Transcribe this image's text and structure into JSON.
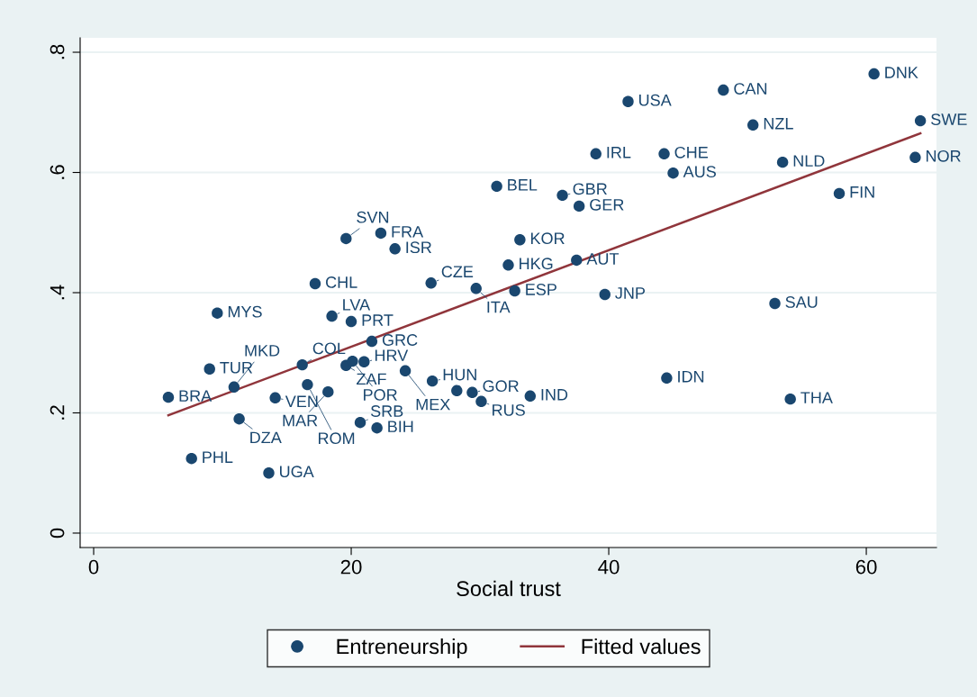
{
  "chart_data": {
    "type": "scatter",
    "xlabel": "Social trust",
    "x": [
      60.6,
      64.2,
      63.8,
      57.9,
      48.9,
      51.2,
      53.5,
      45.0,
      44.3,
      41.5,
      39.0,
      36.4,
      37.7,
      31.3,
      33.1,
      32.2,
      37.5,
      32.7,
      29.7,
      39.7,
      52.9,
      44.5,
      54.1,
      33.9,
      30.1,
      28.2,
      29.4,
      26.3,
      19.6,
      22.3,
      23.4,
      17.2,
      26.2,
      9.6,
      18.5,
      20.0,
      21.6,
      16.2,
      19.6,
      20.1,
      21.0,
      24.2,
      9.0,
      10.9,
      5.8,
      14.1,
      16.6,
      18.2,
      11.3,
      20.7,
      22.0,
      7.6,
      13.6
    ],
    "series": [
      {
        "name": "Entreneurship",
        "color": "#1a476f",
        "marker": "circle",
        "values": [
          0.764,
          0.686,
          0.625,
          0.565,
          0.737,
          0.679,
          0.617,
          0.599,
          0.631,
          0.718,
          0.631,
          0.562,
          0.544,
          0.577,
          0.488,
          0.446,
          0.454,
          0.403,
          0.407,
          0.397,
          0.382,
          0.258,
          0.223,
          0.228,
          0.219,
          0.237,
          0.234,
          0.253,
          0.49,
          0.499,
          0.473,
          0.415,
          0.416,
          0.366,
          0.361,
          0.352,
          0.319,
          0.28,
          0.279,
          0.286,
          0.285,
          0.27,
          0.273,
          0.243,
          0.226,
          0.225,
          0.247,
          0.235,
          0.19,
          0.184,
          0.175,
          0.124,
          0.1
        ]
      },
      {
        "name": "Fitted values",
        "type": "line",
        "color": "#90353b",
        "x": [
          5.8,
          64.2
        ],
        "values": [
          0.196,
          0.665
        ]
      }
    ],
    "annotations": [
      {
        "text": "DNK",
        "x": 60.6,
        "y": 0.764
      },
      {
        "text": "SWE",
        "x": 64.2,
        "y": 0.686
      },
      {
        "text": "NOR",
        "x": 63.8,
        "y": 0.625
      },
      {
        "text": "FIN",
        "x": 57.9,
        "y": 0.565
      },
      {
        "text": "CAN",
        "x": 48.9,
        "y": 0.737
      },
      {
        "text": "NZL",
        "x": 51.2,
        "y": 0.679
      },
      {
        "text": "NLD",
        "x": 53.5,
        "y": 0.617
      },
      {
        "text": "AUS",
        "x": 45.0,
        "y": 0.599
      },
      {
        "text": "CHE",
        "x": 44.3,
        "y": 0.631
      },
      {
        "text": "USA",
        "x": 41.5,
        "y": 0.718
      },
      {
        "text": "IRL",
        "x": 39.0,
        "y": 0.631
      },
      {
        "text": "GBR",
        "x": 36.4,
        "y": 0.562
      },
      {
        "text": "GER",
        "x": 37.7,
        "y": 0.544
      },
      {
        "text": "BEL",
        "x": 31.3,
        "y": 0.577
      },
      {
        "text": "KOR",
        "x": 33.1,
        "y": 0.488
      },
      {
        "text": "HKG",
        "x": 32.2,
        "y": 0.446
      },
      {
        "text": "AUT",
        "x": 37.5,
        "y": 0.454
      },
      {
        "text": "ESP",
        "x": 32.7,
        "y": 0.403
      },
      {
        "text": "ITA",
        "x": 29.7,
        "y": 0.407
      },
      {
        "text": "JNP",
        "x": 39.7,
        "y": 0.397
      },
      {
        "text": "SAU",
        "x": 52.9,
        "y": 0.382
      },
      {
        "text": "IDN",
        "x": 44.5,
        "y": 0.258
      },
      {
        "text": "THA",
        "x": 54.1,
        "y": 0.223
      },
      {
        "text": "IND",
        "x": 33.9,
        "y": 0.228
      },
      {
        "text": "RUS",
        "x": 30.1,
        "y": 0.219
      },
      {
        "text": "GOR",
        "x": 29.4,
        "y": 0.234
      },
      {
        "text": "HUN",
        "x": 26.3,
        "y": 0.253
      },
      {
        "text": "SVN",
        "x": 19.6,
        "y": 0.49
      },
      {
        "text": "FRA",
        "x": 22.3,
        "y": 0.499
      },
      {
        "text": "ISR",
        "x": 23.4,
        "y": 0.473
      },
      {
        "text": "CHL",
        "x": 17.2,
        "y": 0.415
      },
      {
        "text": "CZE",
        "x": 26.2,
        "y": 0.416
      },
      {
        "text": "MYS",
        "x": 9.6,
        "y": 0.366
      },
      {
        "text": "LVA",
        "x": 18.5,
        "y": 0.361
      },
      {
        "text": "PRT",
        "x": 20.0,
        "y": 0.352
      },
      {
        "text": "GRC",
        "x": 21.6,
        "y": 0.319
      },
      {
        "text": "COL",
        "x": 16.2,
        "y": 0.28
      },
      {
        "text": "ZAF",
        "x": 19.6,
        "y": 0.279
      },
      {
        "text": "POR",
        "x": 20.1,
        "y": 0.286
      },
      {
        "text": "HRV",
        "x": 21.0,
        "y": 0.285
      },
      {
        "text": "MEX",
        "x": 24.2,
        "y": 0.27
      },
      {
        "text": "TUR",
        "x": 9.0,
        "y": 0.273
      },
      {
        "text": "MKD",
        "x": 10.9,
        "y": 0.243
      },
      {
        "text": "BRA",
        "x": 5.8,
        "y": 0.226
      },
      {
        "text": "VEN",
        "x": 14.1,
        "y": 0.225
      },
      {
        "text": "ROM",
        "x": 16.6,
        "y": 0.247
      },
      {
        "text": "MAR",
        "x": 18.2,
        "y": 0.235
      },
      {
        "text": "DZA",
        "x": 11.3,
        "y": 0.19
      },
      {
        "text": "SRB",
        "x": 20.7,
        "y": 0.184
      },
      {
        "text": "BIH",
        "x": 22.0,
        "y": 0.175
      },
      {
        "text": "PHL",
        "x": 7.6,
        "y": 0.124
      },
      {
        "text": "UGA",
        "x": 13.6,
        "y": 0.1
      }
    ],
    "xlim": [
      -1.05,
      65.45
    ],
    "xticks": [
      0,
      20,
      40,
      60
    ],
    "ylim": [
      -0.024,
      0.824
    ],
    "yticks": [
      0,
      {
        "value": 0.2,
        "label": ".2"
      },
      {
        "value": 0.4,
        "label": ".4"
      },
      {
        "value": 0.6,
        "label": ".6"
      },
      {
        "value": 0.8,
        "label": ".8"
      }
    ],
    "grid": "y",
    "legend": "bottom"
  }
}
